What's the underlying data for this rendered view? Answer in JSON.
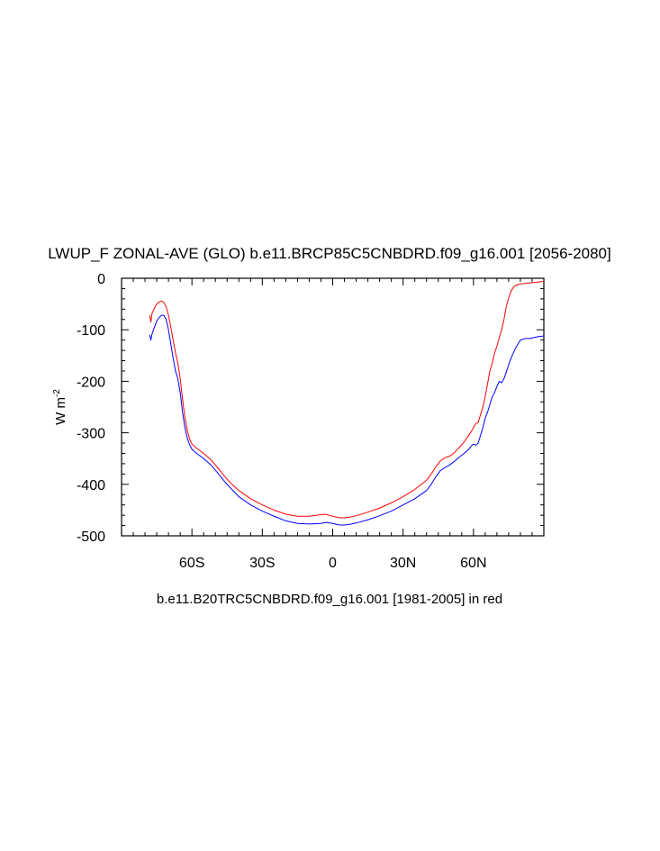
{
  "chart_data": {
    "type": "line",
    "title": "LWUP_F ZONAL-AVE (GLO) b.e11.BRCP85C5CNBDRD.f09_g16.001 [2056-2080]",
    "caption": "b.e11.B20TRC5CNBDRD.f09_g16.001 [1981-2005] in red",
    "ylabel_main": "W m",
    "ylabel_sup": "-2",
    "xlabel": "",
    "xlim": [
      -90,
      90
    ],
    "ylim": [
      -500,
      0
    ],
    "grid": false,
    "x_ticks": [
      {
        "value": -60,
        "label": "60S"
      },
      {
        "value": -30,
        "label": "30S"
      },
      {
        "value": 0,
        "label": "0"
      },
      {
        "value": 30,
        "label": "30N"
      },
      {
        "value": 60,
        "label": "60N"
      }
    ],
    "y_ticks": [
      {
        "value": 0,
        "label": "0"
      },
      {
        "value": -100,
        "label": "-100"
      },
      {
        "value": -200,
        "label": "-200"
      },
      {
        "value": -300,
        "label": "-300"
      },
      {
        "value": -400,
        "label": "-400"
      },
      {
        "value": -500,
        "label": "-500"
      }
    ],
    "series": [
      {
        "name": "b.e11.BRCP85C5CNBDRD.f09_g16.001 [2056-2080]",
        "color": "#0000ff",
        "x": [
          -78,
          -77.5,
          -77,
          -76,
          -75,
          -74,
          -73,
          -72,
          -71,
          -70,
          -69,
          -68,
          -67,
          -66,
          -65,
          -64,
          -63,
          -62,
          -61,
          -60,
          -58,
          -55,
          -52,
          -49,
          -46,
          -43,
          -40,
          -35,
          -30,
          -25,
          -20,
          -15,
          -10,
          -5,
          -3,
          -1,
          0,
          1,
          3,
          5,
          7,
          10,
          15,
          20,
          25,
          30,
          35,
          40,
          42,
          44,
          46,
          48,
          50,
          52,
          54,
          56,
          58,
          59,
          60,
          61,
          62,
          63,
          64,
          65,
          66,
          67,
          68,
          69,
          70,
          71,
          72,
          73,
          74,
          75,
          76,
          78,
          80,
          82,
          84,
          86,
          88,
          90
        ],
        "y": [
          -110,
          -120,
          -108,
          -95,
          -83,
          -76,
          -72,
          -72,
          -80,
          -100,
          -128,
          -155,
          -180,
          -195,
          -222,
          -260,
          -290,
          -310,
          -323,
          -332,
          -340,
          -350,
          -362,
          -378,
          -395,
          -410,
          -424,
          -440,
          -452,
          -462,
          -471,
          -476,
          -477,
          -476,
          -474,
          -475,
          -476,
          -477,
          -479,
          -479,
          -478,
          -475,
          -469,
          -461,
          -452,
          -440,
          -428,
          -412,
          -400,
          -385,
          -373,
          -367,
          -362,
          -355,
          -347,
          -340,
          -332,
          -326,
          -322,
          -324,
          -320,
          -305,
          -290,
          -272,
          -260,
          -245,
          -230,
          -222,
          -210,
          -200,
          -203,
          -195,
          -182,
          -168,
          -155,
          -135,
          -120,
          -117,
          -117,
          -115,
          -113,
          -112
        ]
      },
      {
        "name": "b.e11.B20TRC5CNBDRD.f09_g16.001 [1981-2005]",
        "color": "#ff0000",
        "x": [
          -78,
          -77.5,
          -77,
          -76,
          -75,
          -74,
          -73,
          -72,
          -71,
          -70,
          -69,
          -68,
          -67,
          -66,
          -65,
          -64,
          -63,
          -62,
          -61,
          -60,
          -58,
          -55,
          -52,
          -49,
          -46,
          -43,
          -40,
          -35,
          -30,
          -25,
          -20,
          -15,
          -10,
          -5,
          -3,
          -1,
          0,
          1,
          3,
          5,
          7,
          10,
          15,
          20,
          25,
          30,
          35,
          40,
          42,
          44,
          46,
          48,
          50,
          52,
          54,
          56,
          58,
          59,
          60,
          61,
          62,
          63,
          64,
          65,
          66,
          67,
          68,
          69,
          70,
          71,
          72,
          73,
          74,
          75,
          76,
          77,
          78,
          79,
          80,
          82,
          84,
          86,
          88,
          90
        ],
        "y": [
          -72,
          -85,
          -68,
          -58,
          -50,
          -46,
          -44,
          -47,
          -55,
          -72,
          -95,
          -120,
          -145,
          -165,
          -195,
          -235,
          -270,
          -295,
          -312,
          -322,
          -330,
          -340,
          -352,
          -368,
          -385,
          -400,
          -412,
          -428,
          -440,
          -450,
          -458,
          -462,
          -462,
          -459,
          -458,
          -461,
          -462,
          -463,
          -465,
          -465,
          -464,
          -461,
          -454,
          -446,
          -436,
          -424,
          -410,
          -392,
          -380,
          -366,
          -354,
          -348,
          -345,
          -338,
          -328,
          -318,
          -305,
          -298,
          -290,
          -282,
          -280,
          -265,
          -250,
          -230,
          -205,
          -180,
          -165,
          -145,
          -132,
          -115,
          -100,
          -80,
          -55,
          -38,
          -25,
          -18,
          -14,
          -12,
          -11,
          -10,
          -9,
          -8,
          -7,
          -6
        ]
      }
    ]
  }
}
